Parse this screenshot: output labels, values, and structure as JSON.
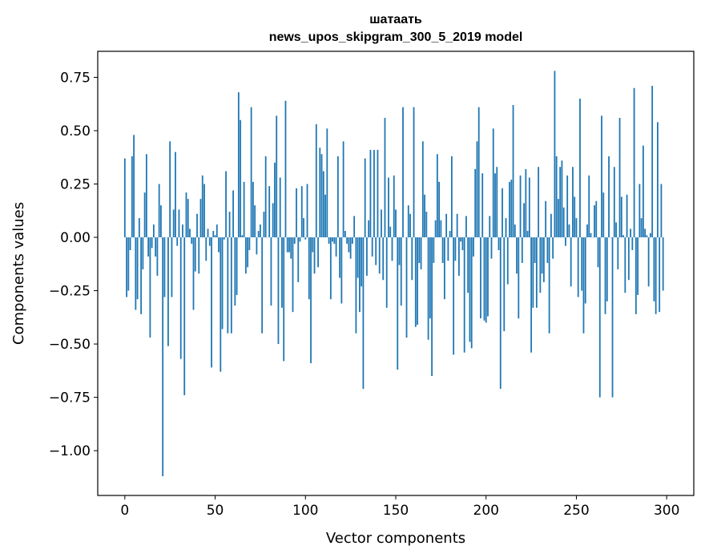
{
  "chart_data": {
    "type": "bar",
    "title_line1": "шатаать",
    "title_line2": "news_upos_skipgram_300_5_2019 model",
    "xlabel": "Vector components",
    "ylabel": "Components values",
    "xlim": [
      -15,
      315
    ],
    "ylim": [
      -1.21,
      0.872
    ],
    "xticks": [
      0,
      50,
      100,
      150,
      200,
      250,
      300
    ],
    "xtick_labels": [
      "0",
      "50",
      "100",
      "150",
      "200",
      "250",
      "300"
    ],
    "yticks": [
      0.75,
      0.5,
      0.25,
      0,
      -0.25,
      -0.5,
      -0.75,
      -1.0
    ],
    "ytick_labels": [
      "0.75",
      "0.50",
      "0.25",
      "0.00",
      "−0.25",
      "−0.50",
      "−0.75",
      "−1.00"
    ],
    "grid": false,
    "bar_color": "#1f77b4",
    "values": [
      0.37,
      -0.28,
      -0.25,
      -0.06,
      0.38,
      0.48,
      -0.34,
      -0.29,
      0.09,
      -0.36,
      -0.15,
      0.21,
      0.39,
      -0.09,
      -0.47,
      -0.05,
      0.06,
      -0.09,
      -0.18,
      0.25,
      0.15,
      -1.12,
      -0.28,
      0.0,
      -0.51,
      0.45,
      -0.28,
      0.13,
      0.4,
      -0.04,
      0.13,
      -0.57,
      0.06,
      -0.74,
      0.21,
      0.18,
      0.04,
      -0.03,
      -0.34,
      -0.16,
      0.11,
      -0.17,
      0.18,
      0.29,
      0.25,
      -0.11,
      0.04,
      -0.04,
      -0.61,
      0.03,
      0.01,
      0.06,
      -0.07,
      -0.63,
      -0.43,
      -0.01,
      0.31,
      -0.45,
      0.12,
      -0.45,
      0.22,
      -0.32,
      -0.27,
      0.68,
      0.55,
      0.01,
      0.26,
      -0.17,
      -0.14,
      -0.06,
      0.61,
      0.26,
      0.15,
      -0.08,
      0.03,
      0.06,
      -0.45,
      0.12,
      0.38,
      0.0,
      0.24,
      -0.32,
      0.16,
      0.35,
      0.57,
      -0.5,
      0.28,
      -0.33,
      -0.58,
      0.64,
      -0.07,
      -0.07,
      -0.1,
      -0.35,
      -0.03,
      0.23,
      -0.21,
      -0.02,
      0.24,
      0.09,
      -0.01,
      0.25,
      -0.29,
      -0.59,
      -0.07,
      -0.17,
      0.53,
      -0.14,
      0.42,
      0.39,
      0.31,
      0.2,
      0.51,
      -0.03,
      -0.29,
      -0.02,
      -0.03,
      -0.09,
      0.38,
      -0.19,
      -0.31,
      0.45,
      0.03,
      -0.03,
      -0.07,
      -0.1,
      -0.03,
      0.1,
      -0.45,
      -0.19,
      -0.35,
      -0.23,
      -0.71,
      0.37,
      -0.18,
      0.08,
      0.41,
      -0.09,
      0.41,
      -0.13,
      0.41,
      -0.17,
      0.13,
      -0.2,
      0.56,
      -0.33,
      0.28,
      0.05,
      -0.11,
      0.29,
      0.13,
      -0.62,
      -0.13,
      -0.32,
      0.61,
      0.0,
      -0.47,
      0.15,
      0.11,
      -0.2,
      0.61,
      -0.42,
      -0.41,
      -0.12,
      -0.15,
      0.45,
      0.2,
      0.12,
      -0.48,
      -0.38,
      -0.65,
      -0.12,
      0.08,
      0.39,
      0.26,
      0.08,
      -0.12,
      -0.29,
      0.11,
      -0.11,
      0.03,
      0.38,
      -0.55,
      -0.11,
      0.11,
      -0.18,
      -0.02,
      -0.06,
      -0.54,
      0.1,
      -0.26,
      -0.49,
      -0.52,
      -0.09,
      0.32,
      0.45,
      0.61,
      -0.38,
      0.3,
      -0.39,
      -0.4,
      -0.37,
      0.1,
      -0.1,
      0.51,
      0.3,
      0.33,
      -0.06,
      -0.71,
      0.23,
      -0.44,
      0.09,
      -0.22,
      0.26,
      0.27,
      0.62,
      0.06,
      -0.17,
      -0.38,
      0.29,
      -0.12,
      0.16,
      0.32,
      0.03,
      0.28,
      -0.54,
      -0.33,
      -0.12,
      -0.33,
      0.33,
      -0.26,
      -0.17,
      -0.21,
      0.17,
      -0.12,
      -0.45,
      0.11,
      -0.1,
      0.78,
      0.38,
      0.18,
      0.33,
      0.36,
      0.14,
      -0.04,
      0.29,
      0.06,
      -0.23,
      0.33,
      0.19,
      0.09,
      -0.28,
      0.65,
      -0.25,
      -0.45,
      -0.31,
      0.06,
      0.29,
      0.02,
      0.0,
      0.15,
      0.17,
      -0.14,
      -0.75,
      0.57,
      0.21,
      -0.36,
      -0.3,
      0.38,
      0.0,
      -0.75,
      0.33,
      0.07,
      -0.15,
      0.56,
      0.19,
      0.01,
      -0.26,
      0.2,
      -0.2,
      0.04,
      -0.06,
      0.7,
      -0.36,
      -0.27,
      0.25,
      0.09,
      0.43,
      0.04,
      0.01,
      -0.23,
      0.02,
      0.71,
      -0.3,
      -0.36,
      0.54,
      -0.35,
      0.25,
      -0.25
    ]
  }
}
